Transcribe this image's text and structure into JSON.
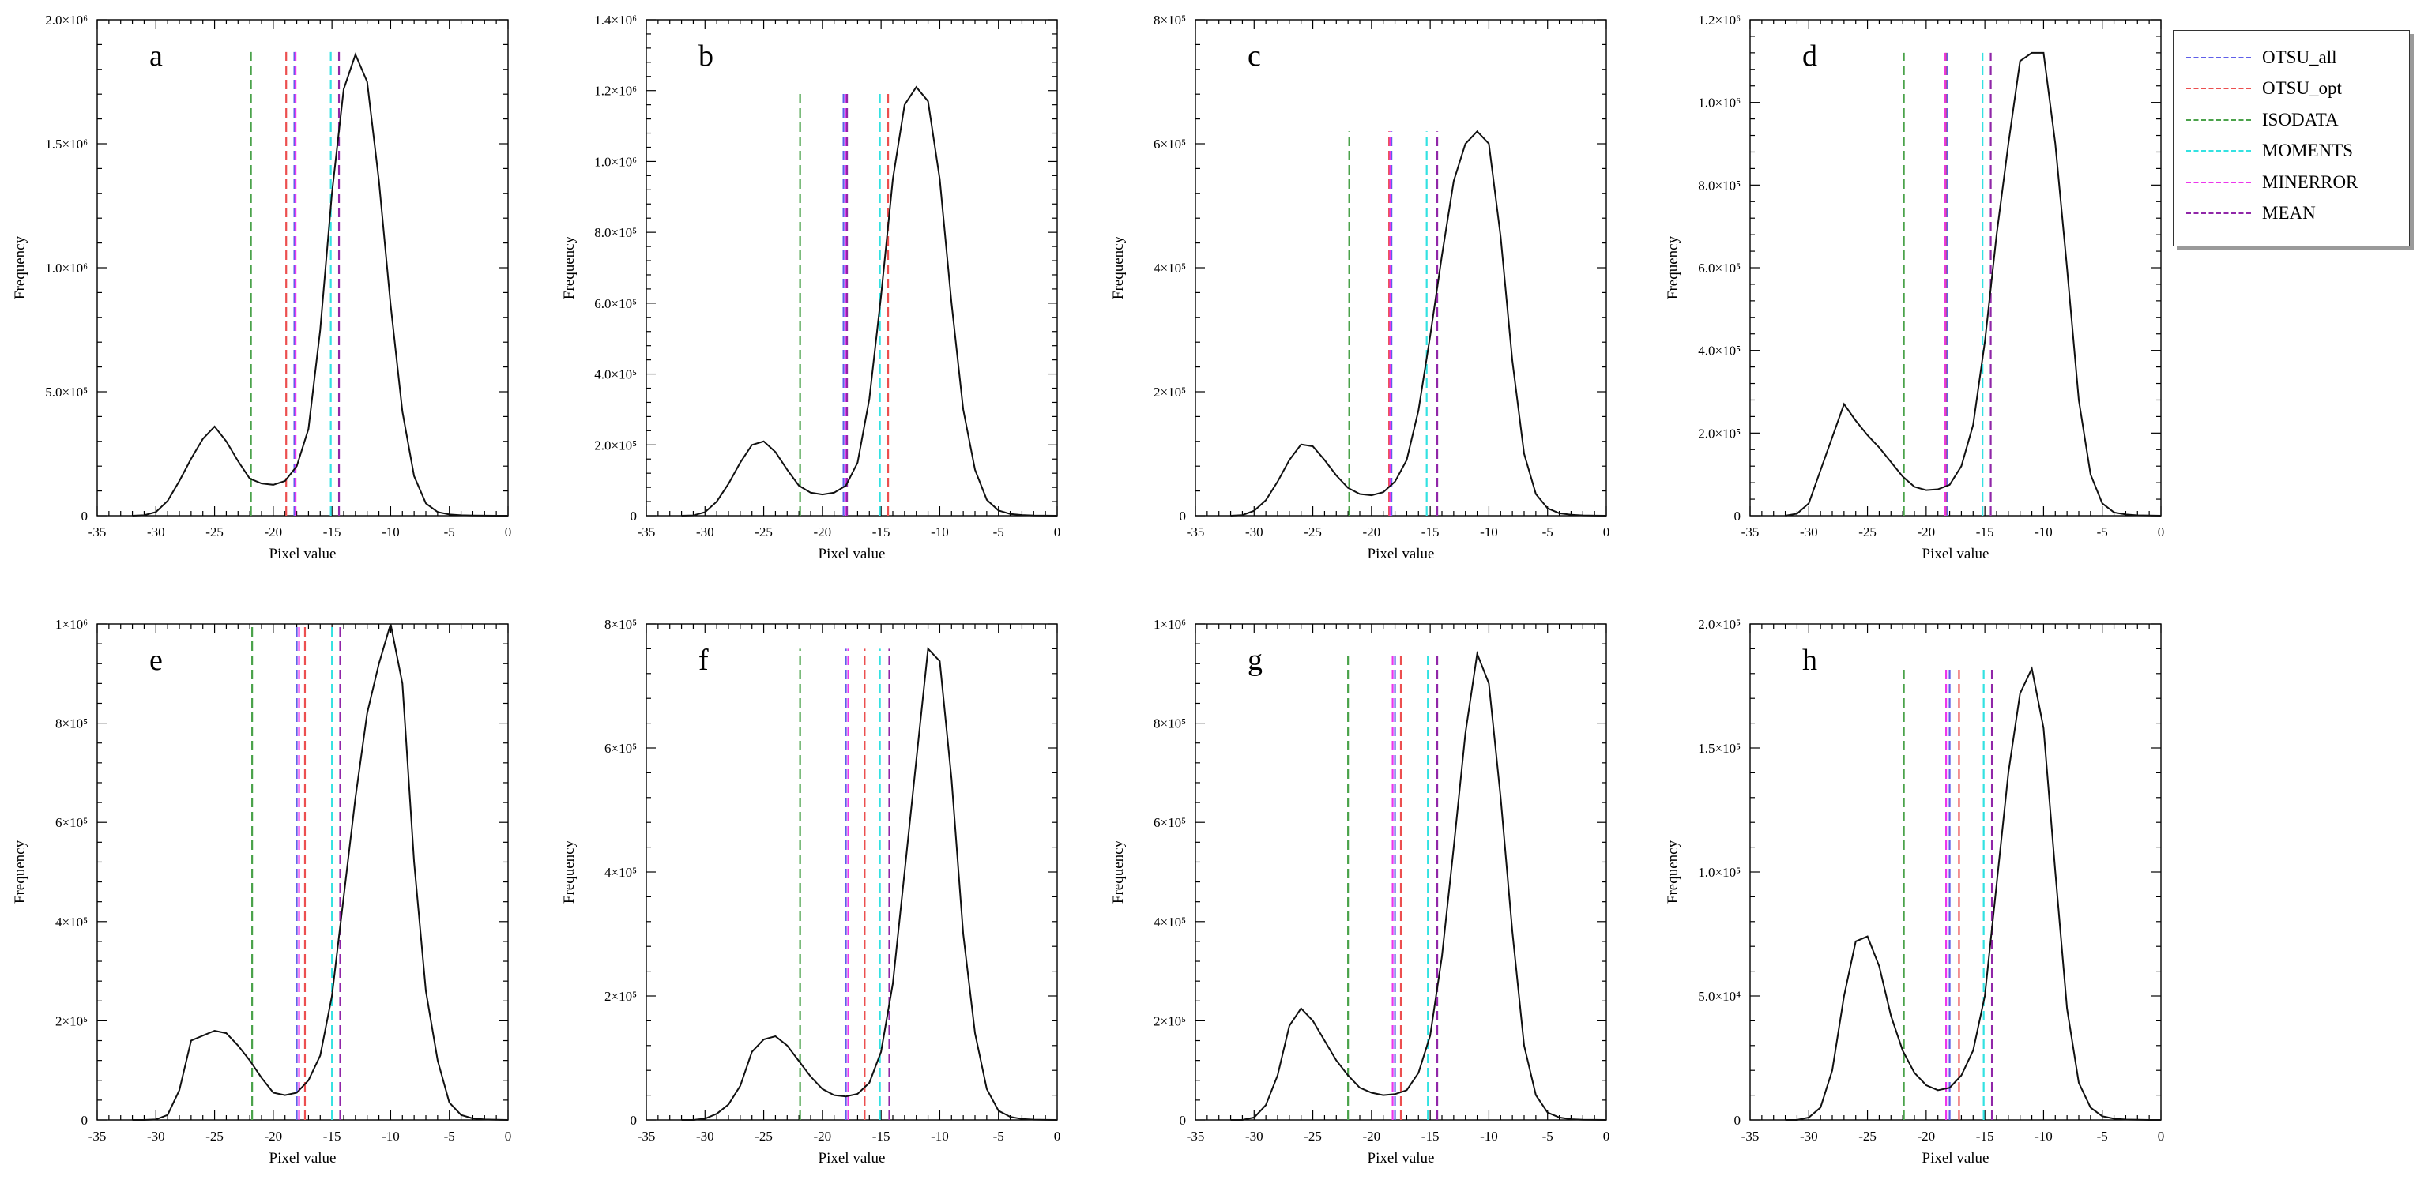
{
  "figure": {
    "layout": "2 rows x 4 columns"
  },
  "legend": {
    "entries": [
      {
        "key": "OTSU_all",
        "label": "OTSU_all",
        "color": "#5f5fe9"
      },
      {
        "key": "OTSU_opt",
        "label": "OTSU_opt",
        "color": "#ec4f4f"
      },
      {
        "key": "ISODATA",
        "label": "ISODATA",
        "color": "#4aa24a"
      },
      {
        "key": "MOMENTS",
        "label": "MOMENTS",
        "color": "#33e2e2"
      },
      {
        "key": "MINERROR",
        "label": "MINERROR",
        "color": "#ec35ec"
      },
      {
        "key": "MEAN",
        "label": "MEAN",
        "color": "#9026a8"
      }
    ]
  },
  "chart_data": [
    {
      "panel": "a",
      "type": "line",
      "xlabel": "Pixel value",
      "ylabel": "Frequency",
      "xlim": [
        -35,
        0
      ],
      "ylim": [
        0,
        2000000
      ],
      "xticks": [
        "-35",
        "-30",
        "-25",
        "-20",
        "-15",
        "-10",
        "-5",
        "0"
      ],
      "yticks": [
        "0",
        "5.0×10⁵",
        "1.0×10⁶",
        "1.5×10⁶",
        "2.0×10⁶"
      ],
      "thresholds": {
        "OTSU_all": -18.2,
        "OTSU_opt": -18.9,
        "ISODATA": -21.9,
        "MOMENTS": -15.1,
        "MINERROR": -18.1,
        "MEAN": -14.4
      },
      "threshold_top": 1870000,
      "x": [
        -32,
        -31,
        -30,
        -29,
        -28,
        -27,
        -26,
        -25,
        -24,
        -23,
        -22,
        -21,
        -20,
        -19,
        -18,
        -17,
        -16,
        -15,
        -14,
        -13,
        -12,
        -11,
        -10,
        -9,
        -8,
        -7,
        -6,
        -5,
        -4,
        -3,
        -2,
        -1,
        0
      ],
      "y": [
        0,
        2000,
        15000,
        60000,
        140000,
        230000,
        310000,
        360000,
        300000,
        220000,
        150000,
        130000,
        125000,
        140000,
        200000,
        350000,
        750000,
        1300000,
        1720000,
        1860000,
        1750000,
        1350000,
        850000,
        420000,
        160000,
        50000,
        15000,
        5000,
        2000,
        800,
        300,
        100,
        0
      ]
    },
    {
      "panel": "b",
      "type": "line",
      "xlabel": "Pixel value",
      "ylabel": "Frequency",
      "xlim": [
        -35,
        0
      ],
      "ylim": [
        0,
        1400000
      ],
      "xticks": [
        "-35",
        "-30",
        "-25",
        "-20",
        "-15",
        "-10",
        "-5",
        "0"
      ],
      "yticks": [
        "0",
        "2.0×10⁵",
        "4.0×10⁵",
        "6.0×10⁵",
        "8.0×10⁵",
        "1.0×10⁶",
        "1.2×10⁶",
        "1.4×10⁶"
      ],
      "thresholds": {
        "OTSU_all": -18.2,
        "OTSU_opt": -14.4,
        "ISODATA": -21.9,
        "MOMENTS": -15.1,
        "MINERROR": -18.0,
        "MEAN": -17.9
      },
      "threshold_top": 1200000,
      "x": [
        -32,
        -31,
        -30,
        -29,
        -28,
        -27,
        -26,
        -25,
        -24,
        -23,
        -22,
        -21,
        -20,
        -19,
        -18,
        -17,
        -16,
        -15,
        -14,
        -13,
        -12,
        -11,
        -10,
        -9,
        -8,
        -7,
        -6,
        -5,
        -4,
        -3,
        -2,
        -1,
        0
      ],
      "y": [
        0,
        1000,
        10000,
        40000,
        90000,
        150000,
        200000,
        210000,
        180000,
        130000,
        85000,
        65000,
        60000,
        65000,
        85000,
        150000,
        330000,
        620000,
        950000,
        1160000,
        1210000,
        1170000,
        950000,
        600000,
        300000,
        130000,
        45000,
        15000,
        5000,
        2000,
        700,
        200,
        0
      ]
    },
    {
      "panel": "c",
      "type": "line",
      "xlabel": "Pixel value",
      "ylabel": "Frequency",
      "xlim": [
        -35,
        0
      ],
      "ylim": [
        0,
        800000
      ],
      "xticks": [
        "-35",
        "-30",
        "-25",
        "-20",
        "-15",
        "-10",
        "-5",
        "0"
      ],
      "yticks": [
        "0",
        "2×10⁵",
        "4×10⁵",
        "6×10⁵",
        "8×10⁵"
      ],
      "thresholds": {
        "OTSU_all": -18.3,
        "OTSU_opt": -18.5,
        "ISODATA": -21.9,
        "MOMENTS": -15.3,
        "MINERROR": -18.4,
        "MEAN": -14.4
      },
      "threshold_top": 620000,
      "x": [
        -32,
        -31,
        -30,
        -29,
        -28,
        -27,
        -26,
        -25,
        -24,
        -23,
        -22,
        -21,
        -20,
        -19,
        -18,
        -17,
        -16,
        -15,
        -14,
        -13,
        -12,
        -11,
        -10,
        -9,
        -8,
        -7,
        -6,
        -5,
        -4,
        -3,
        -2,
        -1,
        0
      ],
      "y": [
        0,
        1000,
        8000,
        25000,
        55000,
        90000,
        115000,
        112000,
        90000,
        65000,
        45000,
        35000,
        33000,
        38000,
        55000,
        90000,
        170000,
        290000,
        420000,
        540000,
        600000,
        620000,
        600000,
        450000,
        250000,
        100000,
        35000,
        12000,
        4000,
        1500,
        500,
        150,
        0
      ]
    },
    {
      "panel": "d",
      "type": "line",
      "xlabel": "Pixel value",
      "ylabel": "Frequency",
      "xlim": [
        -35,
        0
      ],
      "ylim": [
        0,
        1200000
      ],
      "xticks": [
        "-35",
        "-30",
        "-25",
        "-20",
        "-15",
        "-10",
        "-5",
        "0"
      ],
      "yticks": [
        "0",
        "2.0×10⁵",
        "4.0×10⁵",
        "6.0×10⁵",
        "8.0×10⁵",
        "1.0×10⁶",
        "1.2×10⁶"
      ],
      "thresholds": {
        "OTSU_all": -18.2,
        "OTSU_opt": -18.3,
        "ISODATA": -21.9,
        "MOMENTS": -15.2,
        "MINERROR": -18.4,
        "MEAN": -14.5
      },
      "threshold_top": 1120000,
      "x": [
        -32,
        -31,
        -30,
        -29,
        -28,
        -27,
        -26,
        -25,
        -24,
        -23,
        -22,
        -21,
        -20,
        -19,
        -18,
        -17,
        -16,
        -15,
        -14,
        -13,
        -12,
        -11,
        -10,
        -9,
        -8,
        -7,
        -6,
        -5,
        -4,
        -3,
        -2,
        -1,
        0
      ],
      "y": [
        0,
        5000,
        30000,
        110000,
        190000,
        270000,
        230000,
        195000,
        165000,
        130000,
        95000,
        70000,
        62000,
        64000,
        75000,
        120000,
        220000,
        420000,
        680000,
        900000,
        1100000,
        1120000,
        1120000,
        900000,
        600000,
        280000,
        100000,
        30000,
        8000,
        3000,
        1000,
        300,
        0
      ]
    },
    {
      "panel": "e",
      "type": "line",
      "xlabel": "Pixel value",
      "ylabel": "Frequency",
      "xlim": [
        -35,
        0
      ],
      "ylim": [
        0,
        1000000
      ],
      "xticks": [
        "-35",
        "-30",
        "-25",
        "-20",
        "-15",
        "-10",
        "-5",
        "0"
      ],
      "yticks": [
        "0",
        "2×10⁵",
        "4×10⁵",
        "6×10⁵",
        "8×10⁵",
        "1×10⁶"
      ],
      "thresholds": {
        "OTSU_all": -18.0,
        "OTSU_opt": -17.3,
        "ISODATA": -21.8,
        "MOMENTS": -15.0,
        "MINERROR": -17.8,
        "MEAN": -14.3
      },
      "threshold_top": 1000000,
      "x": [
        -32,
        -31,
        -30,
        -29,
        -28,
        -27,
        -26,
        -25,
        -24,
        -23,
        -22,
        -21,
        -20,
        -19,
        -18,
        -17,
        -16,
        -15,
        -14,
        -13,
        -12,
        -11,
        -10,
        -9,
        -8,
        -7,
        -6,
        -5,
        -4,
        -3,
        -2,
        -1,
        0
      ],
      "y": [
        0,
        0,
        1000,
        10000,
        60000,
        160000,
        170000,
        180000,
        175000,
        150000,
        120000,
        85000,
        55000,
        50000,
        55000,
        80000,
        130000,
        250000,
        450000,
        650000,
        820000,
        920000,
        1000000,
        880000,
        520000,
        260000,
        120000,
        35000,
        10000,
        3000,
        1000,
        300,
        0
      ]
    },
    {
      "panel": "f",
      "type": "line",
      "xlabel": "Pixel value",
      "ylabel": "Frequency",
      "xlim": [
        -35,
        0
      ],
      "ylim": [
        0,
        800000
      ],
      "xticks": [
        "-35",
        "-30",
        "-25",
        "-20",
        "-15",
        "-10",
        "-5",
        "0"
      ],
      "yticks": [
        "0",
        "2×10⁵",
        "4×10⁵",
        "6×10⁵",
        "8×10⁵"
      ],
      "thresholds": {
        "OTSU_all": -18.0,
        "OTSU_opt": -16.4,
        "ISODATA": -21.9,
        "MOMENTS": -15.1,
        "MINERROR": -17.8,
        "MEAN": -14.3
      },
      "threshold_top": 760000,
      "x": [
        -32,
        -31,
        -30,
        -29,
        -28,
        -27,
        -26,
        -25,
        -24,
        -23,
        -22,
        -21,
        -20,
        -19,
        -18,
        -17,
        -16,
        -15,
        -14,
        -13,
        -12,
        -11,
        -10,
        -9,
        -8,
        -7,
        -6,
        -5,
        -4,
        -3,
        -2,
        -1,
        0
      ],
      "y": [
        0,
        0,
        2000,
        10000,
        25000,
        55000,
        110000,
        130000,
        135000,
        120000,
        95000,
        70000,
        50000,
        40000,
        38000,
        42000,
        60000,
        110000,
        220000,
        400000,
        580000,
        760000,
        740000,
        550000,
        300000,
        140000,
        50000,
        15000,
        5000,
        1500,
        500,
        100,
        0
      ]
    },
    {
      "panel": "g",
      "type": "line",
      "xlabel": "Pixel value",
      "ylabel": "Frequency",
      "xlim": [
        -35,
        0
      ],
      "ylim": [
        0,
        1000000
      ],
      "xticks": [
        "-35",
        "-30",
        "-25",
        "-20",
        "-15",
        "-10",
        "-5",
        "0"
      ],
      "yticks": [
        "0",
        "2×10⁵",
        "4×10⁵",
        "6×10⁵",
        "8×10⁵",
        "1×10⁶"
      ],
      "thresholds": {
        "OTSU_all": -18.0,
        "OTSU_opt": -17.5,
        "ISODATA": -22.0,
        "MOMENTS": -15.2,
        "MINERROR": -18.2,
        "MEAN": -14.4
      },
      "threshold_top": 940000,
      "x": [
        -32,
        -31,
        -30,
        -29,
        -28,
        -27,
        -26,
        -25,
        -24,
        -23,
        -22,
        -21,
        -20,
        -19,
        -18,
        -17,
        -16,
        -15,
        -14,
        -13,
        -12,
        -11,
        -10,
        -9,
        -8,
        -7,
        -6,
        -5,
        -4,
        -3,
        -2,
        -1,
        0
      ],
      "y": [
        0,
        0,
        5000,
        30000,
        90000,
        190000,
        225000,
        200000,
        160000,
        120000,
        90000,
        65000,
        55000,
        50000,
        52000,
        60000,
        95000,
        170000,
        330000,
        550000,
        780000,
        940000,
        880000,
        650000,
        380000,
        150000,
        50000,
        15000,
        5000,
        1500,
        500,
        100,
        0
      ]
    },
    {
      "panel": "h",
      "type": "line",
      "xlabel": "Pixel value",
      "ylabel": "Frequency",
      "xlim": [
        -35,
        0
      ],
      "ylim": [
        0,
        200000
      ],
      "xticks": [
        "-35",
        "-30",
        "-25",
        "-20",
        "-15",
        "-10",
        "-5",
        "0"
      ],
      "yticks": [
        "0",
        "5.0×10⁴",
        "1.0×10⁵",
        "1.5×10⁵",
        "2.0×10⁵"
      ],
      "thresholds": {
        "OTSU_all": -18.0,
        "OTSU_opt": -17.2,
        "ISODATA": -21.9,
        "MOMENTS": -15.1,
        "MINERROR": -18.3,
        "MEAN": -14.4
      },
      "threshold_top": 182000,
      "x": [
        -32,
        -31,
        -30,
        -29,
        -28,
        -27,
        -26,
        -25,
        -24,
        -23,
        -22,
        -21,
        -20,
        -19,
        -18,
        -17,
        -16,
        -15,
        -14,
        -13,
        -12,
        -11,
        -10,
        -9,
        -8,
        -7,
        -6,
        -5,
        -4,
        -3,
        -2,
        -1,
        0
      ],
      "y": [
        0,
        0,
        1000,
        5000,
        20000,
        50000,
        72000,
        74000,
        62000,
        42000,
        28000,
        19000,
        14000,
        12000,
        13000,
        18000,
        28000,
        50000,
        95000,
        140000,
        172000,
        182000,
        158000,
        100000,
        45000,
        15000,
        5000,
        1500,
        500,
        150,
        50,
        0,
        0
      ]
    }
  ]
}
